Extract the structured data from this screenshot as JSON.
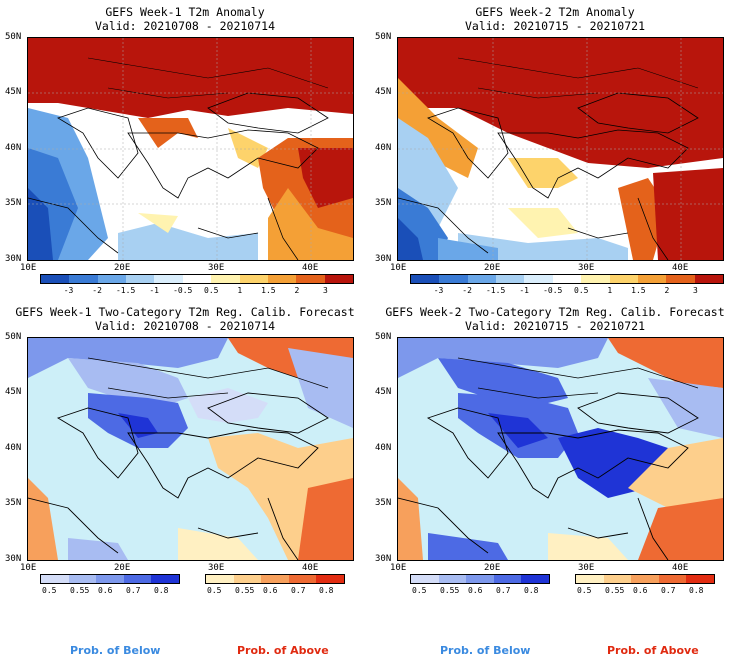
{
  "panels": [
    {
      "title": "GEFS Week-1 T2m Anomaly",
      "valid": "Valid: 20210708 - 20210714"
    },
    {
      "title": "GEFS Week-2 T2m Anomaly",
      "valid": "Valid: 20210715 - 20210721"
    },
    {
      "title": "GEFS Week-1 Two-Category T2m Reg. Calib. Forecast",
      "valid": "Valid: 20210708 - 20210714"
    },
    {
      "title": "GEFS Week-2 Two-Category T2m Reg. Calib. Forecast",
      "valid": "Valid: 20210715 - 20210721"
    }
  ],
  "axes": {
    "lat_labels": [
      "50N",
      "45N",
      "40N",
      "35N",
      "30N"
    ],
    "lon_labels": [
      "10E",
      "20E",
      "30E",
      "40E"
    ]
  },
  "anomaly_colorbar": {
    "labels": [
      "-3",
      "-2",
      "-1.5",
      "-1",
      "-0.5",
      "0.5",
      "1",
      "1.5",
      "2",
      "3"
    ],
    "colors": [
      "#1a4fb8",
      "#3a7bd5",
      "#6aa7e8",
      "#a8d0f2",
      "#daeefc",
      "#ffffff",
      "#fff3b0",
      "#fdd36b",
      "#f4a036",
      "#e4621b",
      "#b8150c"
    ]
  },
  "prob_colorbar": {
    "below_labels": [
      "0.5",
      "0.55",
      "0.6",
      "0.7",
      "0.8"
    ],
    "above_labels": [
      "0.5",
      "0.55",
      "0.6",
      "0.7",
      "0.8"
    ],
    "below_colors": [
      "#d4ddf8",
      "#a8bcf2",
      "#7d98ec",
      "#4d6ae4",
      "#1f34d6"
    ],
    "above_colors": [
      "#fff0c2",
      "#fdcf8c",
      "#f7a05c",
      "#ee6a33",
      "#e22d12"
    ],
    "below_title": "Prob. of Below",
    "above_title": "Prob. of Above",
    "below_title_color": "#3a8ae0",
    "above_title_color": "#e02a10"
  },
  "map_colors": {
    "sea_neutral": "#cdeff8",
    "borders": "#000000"
  }
}
